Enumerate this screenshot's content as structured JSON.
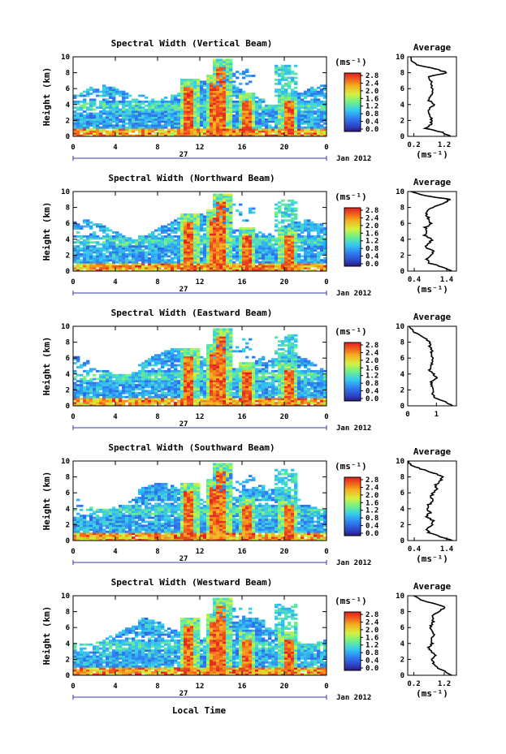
{
  "figure": {
    "xlabel": "Local Time",
    "date_label": "Jan 2012",
    "day_label": "27",
    "unit_label": "(ms⁻¹)",
    "avg_unit_label": "(ms⁻¹)"
  },
  "chart_data": [
    {
      "type": "heatmap",
      "title": "Spectral Width (Vertical Beam)",
      "xlabel": "Local Time",
      "ylabel": "Height (km)",
      "x_ticks": [
        "0",
        "4",
        "8",
        "12",
        "16",
        "20",
        "0"
      ],
      "y_ticks": [
        "0",
        "2",
        "4",
        "6",
        "8",
        "10"
      ],
      "xlim": [
        0,
        24
      ],
      "ylim": [
        0,
        10
      ],
      "colorbar": {
        "label": "(ms⁻¹)",
        "ticks": [
          "2.8",
          "2.4",
          "2.0",
          "1.6",
          "1.2",
          "0.8",
          "0.4",
          "0.0"
        ],
        "range": [
          0,
          3.0
        ]
      },
      "average_profile": {
        "title": "Average",
        "xlabel": "(ms⁻¹)",
        "x_ticks": [
          "0.2",
          "1.2"
        ],
        "y_ticks": [
          "0",
          "2",
          "4",
          "6",
          "8",
          "10"
        ],
        "xlim": [
          0.0,
          1.6
        ],
        "height_km": [
          0,
          0.5,
          1,
          1.5,
          2,
          2.5,
          3,
          3.5,
          4,
          4.5,
          5,
          5.5,
          6,
          6.5,
          7,
          7.5,
          8,
          8.5,
          9,
          9.5,
          10
        ],
        "values": [
          1.4,
          1.15,
          0.6,
          0.75,
          0.8,
          0.75,
          0.65,
          0.7,
          0.9,
          0.7,
          0.75,
          0.85,
          0.8,
          0.8,
          0.75,
          0.65,
          1.3,
          0.9,
          0.3,
          0.15,
          0.1
        ]
      }
    },
    {
      "type": "heatmap",
      "title": "Spectral Width (Northward Beam)",
      "xlabel": "Local Time",
      "ylabel": "Height (km)",
      "x_ticks": [
        "0",
        "4",
        "8",
        "12",
        "16",
        "20",
        "0"
      ],
      "y_ticks": [
        "0",
        "2",
        "4",
        "6",
        "8",
        "10"
      ],
      "xlim": [
        0,
        24
      ],
      "ylim": [
        0,
        10
      ],
      "colorbar": {
        "label": "(ms⁻¹)",
        "ticks": [
          "2.8",
          "2.4",
          "2.0",
          "1.6",
          "1.2",
          "0.8",
          "0.4",
          "0.0"
        ],
        "range": [
          0,
          3.0
        ]
      },
      "average_profile": {
        "title": "Average",
        "xlabel": "(ms⁻¹)",
        "x_ticks": [
          "0.4",
          "1.4"
        ],
        "y_ticks": [
          "0",
          "2",
          "4",
          "6",
          "8",
          "10"
        ],
        "xlim": [
          0.2,
          1.7
        ],
        "height_km": [
          0,
          0.5,
          1,
          1.5,
          2,
          2.5,
          3,
          3.5,
          4,
          4.5,
          5,
          5.5,
          6,
          6.5,
          7,
          7.5,
          8,
          8.5,
          9,
          9.5,
          10
        ],
        "values": [
          1.55,
          1.3,
          0.85,
          0.8,
          0.9,
          1.0,
          0.75,
          0.85,
          0.95,
          0.7,
          0.8,
          0.75,
          0.9,
          0.85,
          0.8,
          0.75,
          0.95,
          1.3,
          1.5,
          0.7,
          0.3
        ]
      }
    },
    {
      "type": "heatmap",
      "title": "Spectral Width (Eastward Beam)",
      "xlabel": "Local Time",
      "ylabel": "Height (km)",
      "x_ticks": [
        "0",
        "4",
        "8",
        "12",
        "16",
        "20",
        "0"
      ],
      "y_ticks": [
        "0",
        "2",
        "4",
        "6",
        "8",
        "10"
      ],
      "xlim": [
        0,
        24
      ],
      "ylim": [
        0,
        10
      ],
      "colorbar": {
        "label": "(ms⁻¹)",
        "ticks": [
          "2.8",
          "2.4",
          "2.0",
          "1.6",
          "1.2",
          "0.8",
          "0.4",
          "0.0"
        ],
        "range": [
          0,
          3.0
        ]
      },
      "average_profile": {
        "title": "Average",
        "xlabel": "",
        "x_ticks": [
          "0",
          "1"
        ],
        "y_ticks": [
          "0",
          "2",
          "4",
          "6",
          "8",
          "10"
        ],
        "xlim": [
          0.0,
          1.7
        ],
        "height_km": [
          0,
          0.5,
          1,
          1.5,
          2,
          2.5,
          3,
          3.5,
          4,
          4.5,
          5,
          5.5,
          6,
          6.5,
          7,
          7.5,
          8,
          8.5,
          9,
          9.5,
          10
        ],
        "values": [
          1.6,
          1.3,
          0.95,
          0.85,
          0.9,
          0.85,
          0.8,
          1.0,
          0.9,
          0.75,
          0.8,
          0.85,
          0.9,
          0.8,
          0.85,
          0.75,
          0.8,
          0.6,
          0.35,
          0.15,
          0.05
        ]
      }
    },
    {
      "type": "heatmap",
      "title": "Spectral Width (Southward Beam)",
      "xlabel": "Local Time",
      "ylabel": "Height (km)",
      "x_ticks": [
        "0",
        "4",
        "8",
        "12",
        "16",
        "20",
        "0"
      ],
      "y_ticks": [
        "0",
        "2",
        "4",
        "6",
        "8",
        "10"
      ],
      "xlim": [
        0,
        24
      ],
      "ylim": [
        0,
        10
      ],
      "colorbar": {
        "label": "(ms⁻¹)",
        "ticks": [
          "2.8",
          "2.4",
          "2.0",
          "1.6",
          "1.2",
          "0.8",
          "0.4",
          "0.0"
        ],
        "range": [
          0,
          3.0
        ]
      },
      "average_profile": {
        "title": "Average",
        "xlabel": "(ms⁻¹)",
        "x_ticks": [
          "0.4",
          "1.4"
        ],
        "y_ticks": [
          "0",
          "2",
          "4",
          "6",
          "8",
          "10"
        ],
        "xlim": [
          0.2,
          1.7
        ],
        "height_km": [
          0,
          0.5,
          1,
          1.5,
          2,
          2.5,
          3,
          3.5,
          4,
          4.5,
          5,
          5.5,
          6,
          6.5,
          7,
          7.5,
          8,
          8.5,
          9,
          9.5,
          10
        ],
        "values": [
          1.55,
          1.2,
          0.85,
          0.8,
          0.95,
          1.0,
          0.75,
          0.9,
          0.8,
          0.85,
          1.0,
          0.9,
          1.0,
          1.1,
          1.05,
          1.2,
          1.3,
          1.0,
          0.6,
          0.3,
          0.2
        ]
      }
    },
    {
      "type": "heatmap",
      "title": "Spectral Width (Westward Beam)",
      "xlabel": "Local Time",
      "ylabel": "Height (km)",
      "x_ticks": [
        "0",
        "4",
        "8",
        "12",
        "16",
        "20",
        "0"
      ],
      "y_ticks": [
        "0",
        "2",
        "4",
        "6",
        "8",
        "10"
      ],
      "xlim": [
        0,
        24
      ],
      "ylim": [
        0,
        10
      ],
      "colorbar": {
        "label": "(ms⁻¹)",
        "ticks": [
          "2.8",
          "2.4",
          "2.0",
          "1.6",
          "1.2",
          "0.8",
          "0.4",
          "0.0"
        ],
        "range": [
          0,
          3.0
        ]
      },
      "average_profile": {
        "title": "Average",
        "xlabel": "(ms⁻¹)",
        "x_ticks": [
          "0.2",
          "1.2"
        ],
        "y_ticks": [
          "0",
          "2",
          "4",
          "6",
          "8",
          "10"
        ],
        "xlim": [
          0.0,
          1.6
        ],
        "height_km": [
          0,
          0.5,
          1,
          1.5,
          2,
          2.5,
          3,
          3.5,
          4,
          4.5,
          5,
          5.5,
          6,
          6.5,
          7,
          7.5,
          8,
          8.5,
          9,
          9.5,
          10
        ],
        "values": [
          1.45,
          1.2,
          0.95,
          0.85,
          0.8,
          0.9,
          0.75,
          0.7,
          0.8,
          0.75,
          0.85,
          0.8,
          0.75,
          0.8,
          0.85,
          0.8,
          1.0,
          1.25,
          0.9,
          0.4,
          0.2
        ]
      }
    }
  ]
}
